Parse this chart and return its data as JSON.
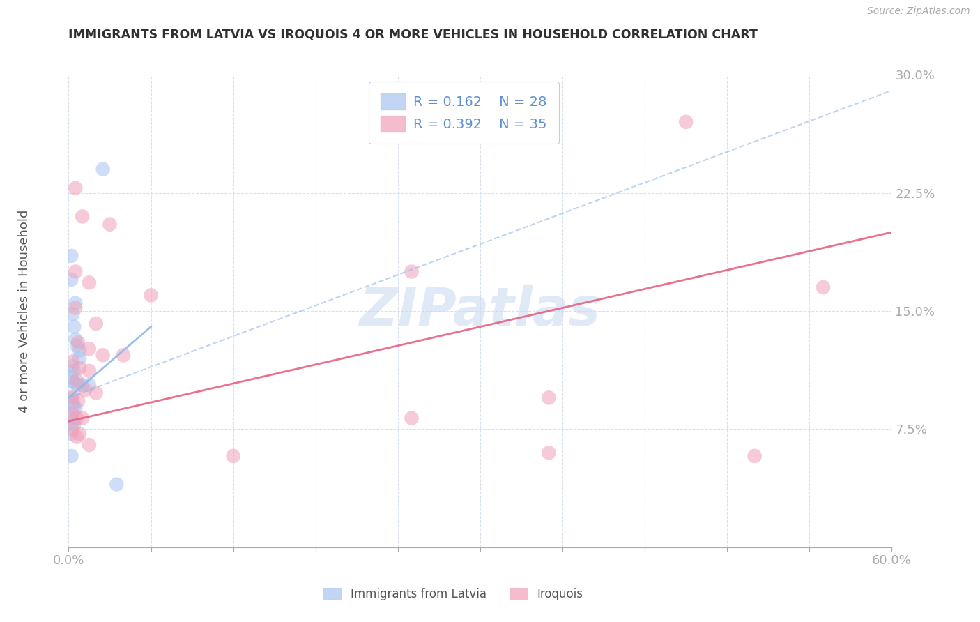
{
  "title": "IMMIGRANTS FROM LATVIA VS IROQUOIS 4 OR MORE VEHICLES IN HOUSEHOLD CORRELATION CHART",
  "source": "Source: ZipAtlas.com",
  "ylabel_left": "4 or more Vehicles in Household",
  "legend_labels": [
    "Immigrants from Latvia",
    "Iroquois"
  ],
  "legend_r": [
    "R = 0.162",
    "R = 0.392"
  ],
  "legend_n": [
    "N = 28",
    "N = 35"
  ],
  "blue_color": "#a8c4f0",
  "pink_color": "#f0a0b8",
  "blue_line_color": "#90b8e8",
  "pink_line_color": "#e86080",
  "axis_color": "#6090d8",
  "grid_color": "#d8e0f0",
  "watermark_color": "#c8d8f0",
  "blue_dots": [
    [
      0.002,
      0.185
    ],
    [
      0.025,
      0.24
    ],
    [
      0.002,
      0.17
    ],
    [
      0.005,
      0.155
    ],
    [
      0.003,
      0.148
    ],
    [
      0.004,
      0.14
    ],
    [
      0.005,
      0.132
    ],
    [
      0.006,
      0.128
    ],
    [
      0.008,
      0.125
    ],
    [
      0.008,
      0.12
    ],
    [
      0.003,
      0.115
    ],
    [
      0.004,
      0.112
    ],
    [
      0.002,
      0.108
    ],
    [
      0.003,
      0.105
    ],
    [
      0.005,
      0.104
    ],
    [
      0.007,
      0.103
    ],
    [
      0.01,
      0.103
    ],
    [
      0.015,
      0.103
    ],
    [
      0.002,
      0.095
    ],
    [
      0.003,
      0.092
    ],
    [
      0.004,
      0.09
    ],
    [
      0.005,
      0.088
    ],
    [
      0.002,
      0.082
    ],
    [
      0.003,
      0.08
    ],
    [
      0.004,
      0.078
    ],
    [
      0.002,
      0.072
    ],
    [
      0.035,
      0.04
    ],
    [
      0.002,
      0.058
    ]
  ],
  "pink_dots": [
    [
      0.45,
      0.27
    ],
    [
      0.005,
      0.228
    ],
    [
      0.01,
      0.21
    ],
    [
      0.03,
      0.205
    ],
    [
      0.005,
      0.175
    ],
    [
      0.015,
      0.168
    ],
    [
      0.06,
      0.16
    ],
    [
      0.005,
      0.152
    ],
    [
      0.02,
      0.142
    ],
    [
      0.007,
      0.13
    ],
    [
      0.015,
      0.126
    ],
    [
      0.025,
      0.122
    ],
    [
      0.04,
      0.122
    ],
    [
      0.003,
      0.118
    ],
    [
      0.008,
      0.114
    ],
    [
      0.015,
      0.112
    ],
    [
      0.006,
      0.106
    ],
    [
      0.012,
      0.1
    ],
    [
      0.02,
      0.098
    ],
    [
      0.003,
      0.095
    ],
    [
      0.007,
      0.093
    ],
    [
      0.003,
      0.085
    ],
    [
      0.006,
      0.082
    ],
    [
      0.01,
      0.082
    ],
    [
      0.003,
      0.075
    ],
    [
      0.008,
      0.072
    ],
    [
      0.006,
      0.07
    ],
    [
      0.015,
      0.065
    ],
    [
      0.12,
      0.058
    ],
    [
      0.35,
      0.06
    ],
    [
      0.25,
      0.082
    ],
    [
      0.5,
      0.058
    ],
    [
      0.35,
      0.095
    ],
    [
      0.25,
      0.175
    ],
    [
      0.55,
      0.165
    ]
  ],
  "blue_line": [
    [
      0.0,
      0.095
    ],
    [
      0.06,
      0.14
    ]
  ],
  "pink_line": [
    [
      0.0,
      0.08
    ],
    [
      0.6,
      0.2
    ]
  ],
  "blue_dash_line": [
    [
      0.0,
      0.095
    ],
    [
      0.6,
      0.29
    ]
  ],
  "xlim": [
    0.0,
    0.6
  ],
  "ylim": [
    0.0,
    0.3
  ],
  "xticks": [
    0.0,
    0.06,
    0.12,
    0.18,
    0.24,
    0.3,
    0.36,
    0.42,
    0.48,
    0.54,
    0.6
  ],
  "yticks": [
    0.0,
    0.075,
    0.15,
    0.225,
    0.3
  ],
  "background_color": "#ffffff"
}
